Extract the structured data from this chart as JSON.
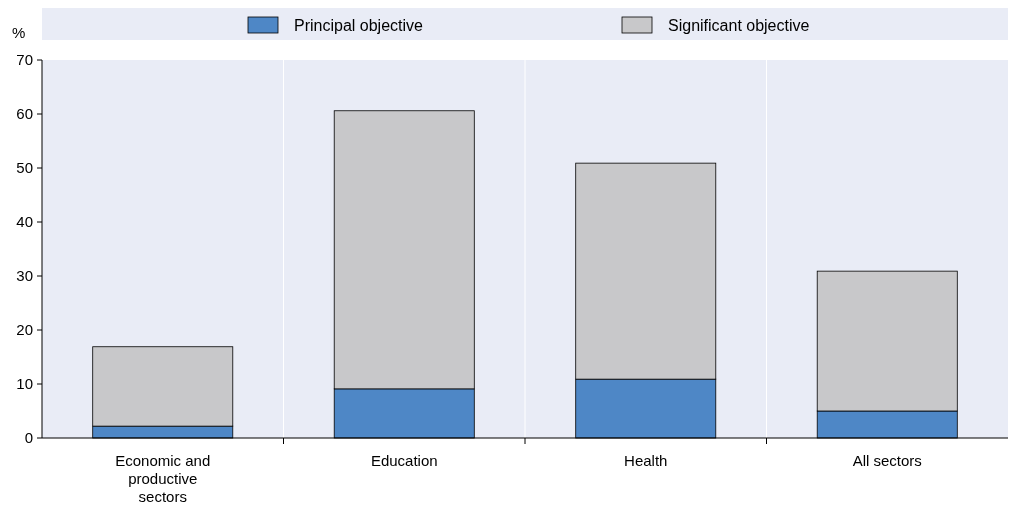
{
  "chart_data": {
    "type": "bar",
    "stacked": true,
    "ylabel": "%",
    "categories": [
      "Economic and productive sectors",
      "Education",
      "Health",
      "All sectors"
    ],
    "series": [
      {
        "name": "Principal objective",
        "color": "#4e87c6",
        "values": [
          2.2,
          9.1,
          10.9,
          5.0
        ]
      },
      {
        "name": "Significant objective",
        "color": "#c8c8ca",
        "values": [
          14.7,
          51.5,
          40.0,
          25.9
        ]
      }
    ],
    "ylim": [
      0,
      70
    ],
    "yticks": [
      0,
      10,
      20,
      30,
      40,
      50,
      60,
      70
    ],
    "grid": "x",
    "legend": "top"
  }
}
